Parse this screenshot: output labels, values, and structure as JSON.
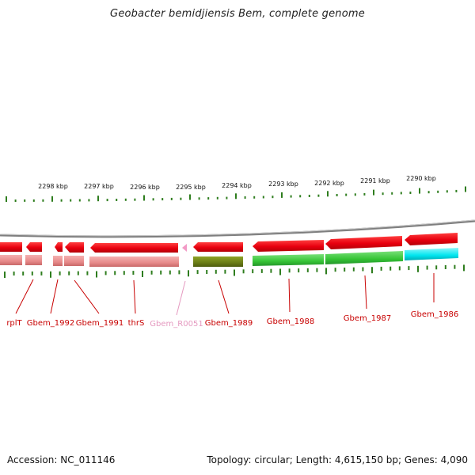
{
  "title": "Geobacter bemidjiensis Bem, complete genome",
  "footer": {
    "accession": "Accession: NC_011146",
    "topology": "Topology: circular; Length: 4,615,150 bp; Genes: 4,090"
  },
  "colors": {
    "backbone": "#7f7f7f",
    "tick": "#2e7d1e",
    "cds_red": "#e8000f",
    "cds_red_pale": "#e78a8a",
    "olive": "#6b7d17",
    "green": "#35c435",
    "cyan": "#00e5ef",
    "label_red": "#c80000",
    "label_pink": "#e59ac0"
  },
  "scale_labels": [
    "2298 kbp",
    "2297 kbp",
    "2296 kbp",
    "2295 kbp",
    "2294 kbp",
    "2293 kbp",
    "2292 kbp",
    "2291 kbp",
    "2290 kbp"
  ],
  "gene_labels": [
    {
      "text": "rplT",
      "color": "#c80000"
    },
    {
      "text": "Gbem_1992",
      "color": "#c80000"
    },
    {
      "text": "Gbem_1991",
      "color": "#c80000"
    },
    {
      "text": "thrS",
      "color": "#c80000"
    },
    {
      "text": "Gbem_R0051",
      "color": "#e59ac0"
    },
    {
      "text": "Gbem_1989",
      "color": "#c80000"
    },
    {
      "text": "Gbem_1988",
      "color": "#c80000"
    },
    {
      "text": "Gbem_1987",
      "color": "#c80000"
    },
    {
      "text": "Gbem_1986",
      "color": "#c80000"
    }
  ]
}
